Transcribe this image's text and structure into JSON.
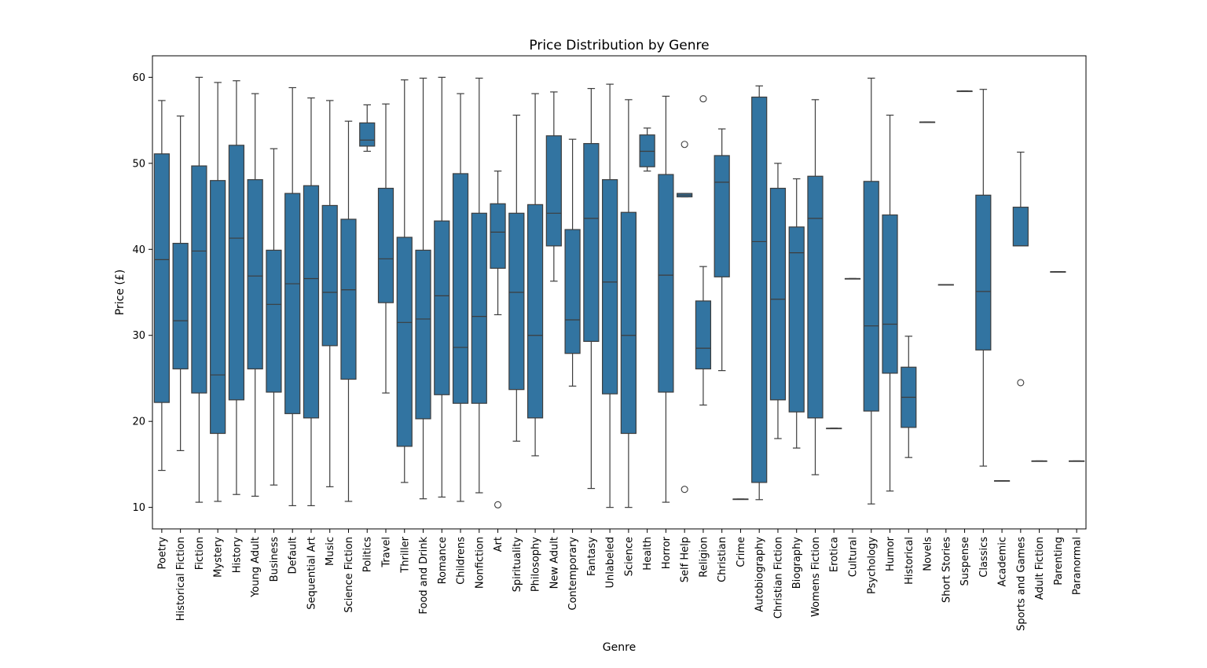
{
  "chart_data": {
    "type": "box",
    "title": "Price Distribution by Genre",
    "xlabel": "Genre",
    "ylabel": "Price (£)",
    "ylim": [
      7.5,
      62.5
    ],
    "yticks": [
      10,
      20,
      30,
      40,
      50,
      60
    ],
    "grid": false,
    "legend": "none",
    "box_color": "#3274a1",
    "line_color": "#3d3d3d",
    "categories": [
      "Poetry",
      "Historical Fiction",
      "Fiction",
      "Mystery",
      "History",
      "Young Adult",
      "Business",
      "Default",
      "Sequential Art",
      "Music",
      "Science Fiction",
      "Politics",
      "Travel",
      "Thriller",
      "Food and Drink",
      "Romance",
      "Childrens",
      "Nonfiction",
      "Art",
      "Spirituality",
      "Philosophy",
      "New Adult",
      "Contemporary",
      "Fantasy",
      "Unlabeled",
      "Science",
      "Health",
      "Horror",
      "Self Help",
      "Religion",
      "Christian",
      "Crime",
      "Autobiography",
      "Christian Fiction",
      "Biography",
      "Womens Fiction",
      "Erotica",
      "Cultural",
      "Psychology",
      "Humor",
      "Historical",
      "Novels",
      "Short Stories",
      "Suspense",
      "Classics",
      "Academic",
      "Sports and Games",
      "Adult Fiction",
      "Parenting",
      "Paranormal"
    ],
    "boxes": [
      {
        "min": 14.3,
        "q1": 22.2,
        "median": 38.8,
        "q3": 51.1,
        "max": 57.3,
        "outliers": []
      },
      {
        "min": 16.6,
        "q1": 26.1,
        "median": 31.7,
        "q3": 40.7,
        "max": 55.5,
        "outliers": []
      },
      {
        "min": 10.6,
        "q1": 23.3,
        "median": 39.8,
        "q3": 49.7,
        "max": 60.0,
        "outliers": []
      },
      {
        "min": 10.7,
        "q1": 18.6,
        "median": 25.4,
        "q3": 48.0,
        "max": 59.4,
        "outliers": []
      },
      {
        "min": 11.5,
        "q1": 22.5,
        "median": 41.3,
        "q3": 52.1,
        "max": 59.6,
        "outliers": []
      },
      {
        "min": 11.3,
        "q1": 26.1,
        "median": 36.9,
        "q3": 48.1,
        "max": 58.1,
        "outliers": []
      },
      {
        "min": 12.6,
        "q1": 23.4,
        "median": 33.6,
        "q3": 39.9,
        "max": 51.7,
        "outliers": []
      },
      {
        "min": 10.2,
        "q1": 20.9,
        "median": 36.0,
        "q3": 46.5,
        "max": 58.8,
        "outliers": []
      },
      {
        "min": 10.2,
        "q1": 20.4,
        "median": 36.6,
        "q3": 47.4,
        "max": 57.6,
        "outliers": []
      },
      {
        "min": 12.4,
        "q1": 28.8,
        "median": 35.0,
        "q3": 45.1,
        "max": 57.3,
        "outliers": []
      },
      {
        "min": 10.7,
        "q1": 24.9,
        "median": 35.3,
        "q3": 43.5,
        "max": 54.9,
        "outliers": []
      },
      {
        "min": 51.4,
        "q1": 52.0,
        "median": 52.7,
        "q3": 54.7,
        "max": 56.8,
        "outliers": []
      },
      {
        "min": 23.3,
        "q1": 33.8,
        "median": 38.9,
        "q3": 47.1,
        "max": 56.9,
        "outliers": []
      },
      {
        "min": 12.9,
        "q1": 17.1,
        "median": 31.5,
        "q3": 41.4,
        "max": 59.7,
        "outliers": []
      },
      {
        "min": 11.0,
        "q1": 20.3,
        "median": 31.9,
        "q3": 39.9,
        "max": 59.9,
        "outliers": []
      },
      {
        "min": 11.2,
        "q1": 23.1,
        "median": 34.6,
        "q3": 43.3,
        "max": 60.0,
        "outliers": []
      },
      {
        "min": 10.7,
        "q1": 22.1,
        "median": 28.6,
        "q3": 48.8,
        "max": 58.1,
        "outliers": []
      },
      {
        "min": 11.7,
        "q1": 22.1,
        "median": 32.2,
        "q3": 44.2,
        "max": 59.9,
        "outliers": []
      },
      {
        "min": 32.4,
        "q1": 37.8,
        "median": 42.0,
        "q3": 45.3,
        "max": 49.1,
        "outliers": [
          10.3
        ]
      },
      {
        "min": 17.7,
        "q1": 23.7,
        "median": 35.0,
        "q3": 44.2,
        "max": 55.6,
        "outliers": []
      },
      {
        "min": 16.0,
        "q1": 20.4,
        "median": 30.0,
        "q3": 45.2,
        "max": 58.1,
        "outliers": []
      },
      {
        "min": 36.3,
        "q1": 40.4,
        "median": 44.2,
        "q3": 53.2,
        "max": 58.3,
        "outliers": []
      },
      {
        "min": 24.1,
        "q1": 27.9,
        "median": 31.8,
        "q3": 42.3,
        "max": 52.8,
        "outliers": []
      },
      {
        "min": 12.2,
        "q1": 29.3,
        "median": 43.6,
        "q3": 52.3,
        "max": 58.7,
        "outliers": []
      },
      {
        "min": 10.0,
        "q1": 23.2,
        "median": 36.2,
        "q3": 48.1,
        "max": 59.2,
        "outliers": []
      },
      {
        "min": 10.0,
        "q1": 18.6,
        "median": 30.0,
        "q3": 44.3,
        "max": 57.4,
        "outliers": []
      },
      {
        "min": 49.1,
        "q1": 49.6,
        "median": 51.4,
        "q3": 53.3,
        "max": 54.1,
        "outliers": []
      },
      {
        "min": 10.6,
        "q1": 23.4,
        "median": 37.0,
        "q3": 48.7,
        "max": 57.8,
        "outliers": []
      },
      {
        "min": 46.1,
        "q1": 46.1,
        "median": 46.3,
        "q3": 46.5,
        "max": 46.5,
        "outliers": [
          52.2,
          12.1
        ]
      },
      {
        "min": 21.9,
        "q1": 26.1,
        "median": 28.5,
        "q3": 34.0,
        "max": 38.0,
        "outliers": [
          57.5
        ]
      },
      {
        "min": 25.9,
        "q1": 36.8,
        "median": 47.8,
        "q3": 50.9,
        "max": 54.0,
        "outliers": []
      },
      {
        "min": 10.97,
        "q1": 10.97,
        "median": 10.97,
        "q3": 10.97,
        "max": 10.97,
        "outliers": []
      },
      {
        "min": 10.9,
        "q1": 12.9,
        "median": 40.9,
        "q3": 57.7,
        "max": 59.0,
        "outliers": []
      },
      {
        "min": 18.0,
        "q1": 22.5,
        "median": 34.2,
        "q3": 47.1,
        "max": 50.0,
        "outliers": []
      },
      {
        "min": 16.9,
        "q1": 21.1,
        "median": 39.6,
        "q3": 42.6,
        "max": 48.2,
        "outliers": []
      },
      {
        "min": 13.8,
        "q1": 20.4,
        "median": 43.6,
        "q3": 48.5,
        "max": 57.4,
        "outliers": []
      },
      {
        "min": 19.2,
        "q1": 19.2,
        "median": 19.2,
        "q3": 19.2,
        "max": 19.2,
        "outliers": []
      },
      {
        "min": 36.6,
        "q1": 36.6,
        "median": 36.6,
        "q3": 36.6,
        "max": 36.6,
        "outliers": []
      },
      {
        "min": 10.4,
        "q1": 21.2,
        "median": 31.1,
        "q3": 47.9,
        "max": 59.9,
        "outliers": []
      },
      {
        "min": 11.9,
        "q1": 25.6,
        "median": 31.3,
        "q3": 44.0,
        "max": 55.6,
        "outliers": []
      },
      {
        "min": 15.8,
        "q1": 19.3,
        "median": 22.8,
        "q3": 26.3,
        "max": 29.9,
        "outliers": []
      },
      {
        "min": 54.8,
        "q1": 54.8,
        "median": 54.8,
        "q3": 54.8,
        "max": 54.8,
        "outliers": []
      },
      {
        "min": 35.9,
        "q1": 35.9,
        "median": 35.9,
        "q3": 35.9,
        "max": 35.9,
        "outliers": []
      },
      {
        "min": 58.4,
        "q1": 58.4,
        "median": 58.4,
        "q3": 58.4,
        "max": 58.4,
        "outliers": []
      },
      {
        "min": 14.8,
        "q1": 28.3,
        "median": 35.1,
        "q3": 46.3,
        "max": 58.6,
        "outliers": []
      },
      {
        "min": 13.1,
        "q1": 13.1,
        "median": 13.1,
        "q3": 13.1,
        "max": 13.1,
        "outliers": []
      },
      {
        "min": 40.4,
        "q1": 40.4,
        "median": 40.4,
        "q3": 44.9,
        "max": 51.3,
        "outliers": [
          24.5
        ]
      },
      {
        "min": 15.4,
        "q1": 15.4,
        "median": 15.4,
        "q3": 15.4,
        "max": 15.4,
        "outliers": []
      },
      {
        "min": 37.4,
        "q1": 37.4,
        "median": 37.4,
        "q3": 37.4,
        "max": 37.4,
        "outliers": []
      },
      {
        "min": 15.4,
        "q1": 15.4,
        "median": 15.4,
        "q3": 15.4,
        "max": 15.4,
        "outliers": []
      }
    ]
  }
}
